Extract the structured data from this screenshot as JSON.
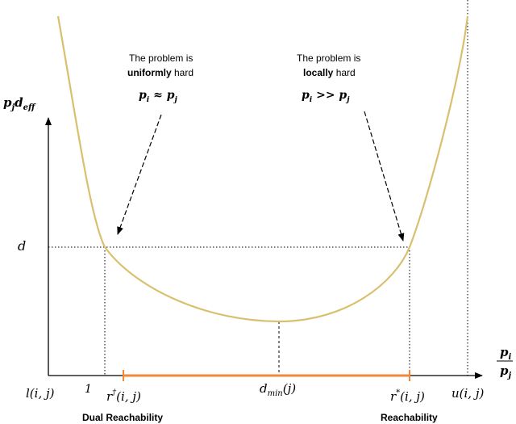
{
  "axes": {
    "y_label": "p_j d_eff",
    "x_label_num": "p_i",
    "x_label_den": "p_j",
    "y_tick_d": "d",
    "x_tick_l": "l(i, j)",
    "x_tick_1": "1",
    "x_tick_rdag": "r†(i, j)",
    "x_tick_dmin": "d_min(j)",
    "x_tick_rstar": "r*(i, j)",
    "x_tick_u": "u(i, j)"
  },
  "annotations": {
    "left_line1": "The problem is",
    "left_bold": "uniformly",
    "left_rest": " hard",
    "left_math": "p_i ≈ p_j",
    "right_line1": "The problem is",
    "right_bold": "locally",
    "right_rest": " hard",
    "right_math": "p_i >> p_j"
  },
  "region_labels": {
    "dual": "Dual Reachability",
    "reach": "Reachability"
  },
  "colors": {
    "curve": "#d9c06e",
    "interval": "#f0873a",
    "axis": "#000000"
  }
}
